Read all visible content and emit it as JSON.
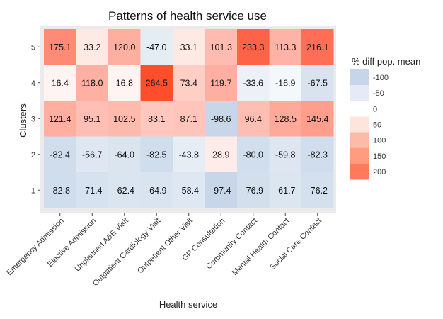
{
  "chart_data": {
    "type": "heatmap",
    "title": "Patterns of health service use",
    "xlabel": "Health service",
    "ylabel": "Clusters",
    "x_categories": [
      "Emergency Admission",
      "Elective Admission",
      "Unplanned A&E Visit",
      "Outpatient Cardiology Visit",
      "Outpatient Other Visit",
      "GP Consultation",
      "Community Contact",
      "Mental Health Contact",
      "Social Care Contact"
    ],
    "y_categories": [
      "1",
      "2",
      "3",
      "4",
      "5"
    ],
    "values": {
      "1": [
        -82.8,
        -71.4,
        -62.4,
        -64.9,
        -58.4,
        -97.4,
        -76.9,
        -61.7,
        -76.2
      ],
      "2": [
        -82.4,
        -56.7,
        -64.0,
        -82.5,
        -43.8,
        28.9,
        -80.0,
        -59.8,
        -82.3
      ],
      "3": [
        121.4,
        95.1,
        102.5,
        83.1,
        87.1,
        -98.6,
        96.4,
        128.5,
        145.4
      ],
      "4": [
        16.4,
        118.0,
        16.8,
        264.5,
        73.4,
        119.7,
        -33.6,
        -16.9,
        -67.5
      ],
      "5": [
        175.1,
        33.2,
        120.0,
        -47.0,
        33.1,
        101.3,
        233.3,
        113.3,
        216.1
      ]
    },
    "value_labels": {
      "1": [
        "-82.8",
        "-71.4",
        "-62.4",
        "-64.9",
        "-58.4",
        "-97.4",
        "-76.9",
        "-61.7",
        "-76.2"
      ],
      "2": [
        "-82.4",
        "-56.7",
        "-64.0",
        "-82.5",
        "-43.8",
        "28.9",
        "-80.0",
        "-59.8",
        "-82.3"
      ],
      "3": [
        "121.4",
        "95.1",
        "102.5",
        "83.1",
        "87.1",
        "-98.6",
        "96.4",
        "128.5",
        "145.4"
      ],
      "4": [
        "16.4",
        "118.0",
        "16.8",
        "264.5",
        "73.4",
        "119.7",
        "-33.6",
        "-16.9",
        "-67.5"
      ],
      "5": [
        "175.1",
        "33.2",
        "120.0",
        "-47.0",
        "33.1",
        "101.3",
        "233.3",
        "113.3",
        "216.1"
      ]
    },
    "legend": {
      "title": "% diff pop. mean",
      "entries": [
        {
          "label": "-100",
          "color": "#c6d6e8"
        },
        {
          "label": "-50",
          "color": "#e6eaf6"
        },
        {
          "label": "0",
          "color": "#ffffff"
        },
        {
          "label": "50",
          "color": "#fde4dc"
        },
        {
          "label": "100",
          "color": "#fcbba8"
        },
        {
          "label": "150",
          "color": "#fd9c80"
        },
        {
          "label": "200",
          "color": "#fe7a5a"
        }
      ]
    },
    "colors": {
      "low": "#c6d6e8",
      "mid": "#ffffff",
      "high": "#ff4a2a",
      "panel_background": "#ebebeb"
    },
    "legend_position": "right",
    "grid": true
  }
}
